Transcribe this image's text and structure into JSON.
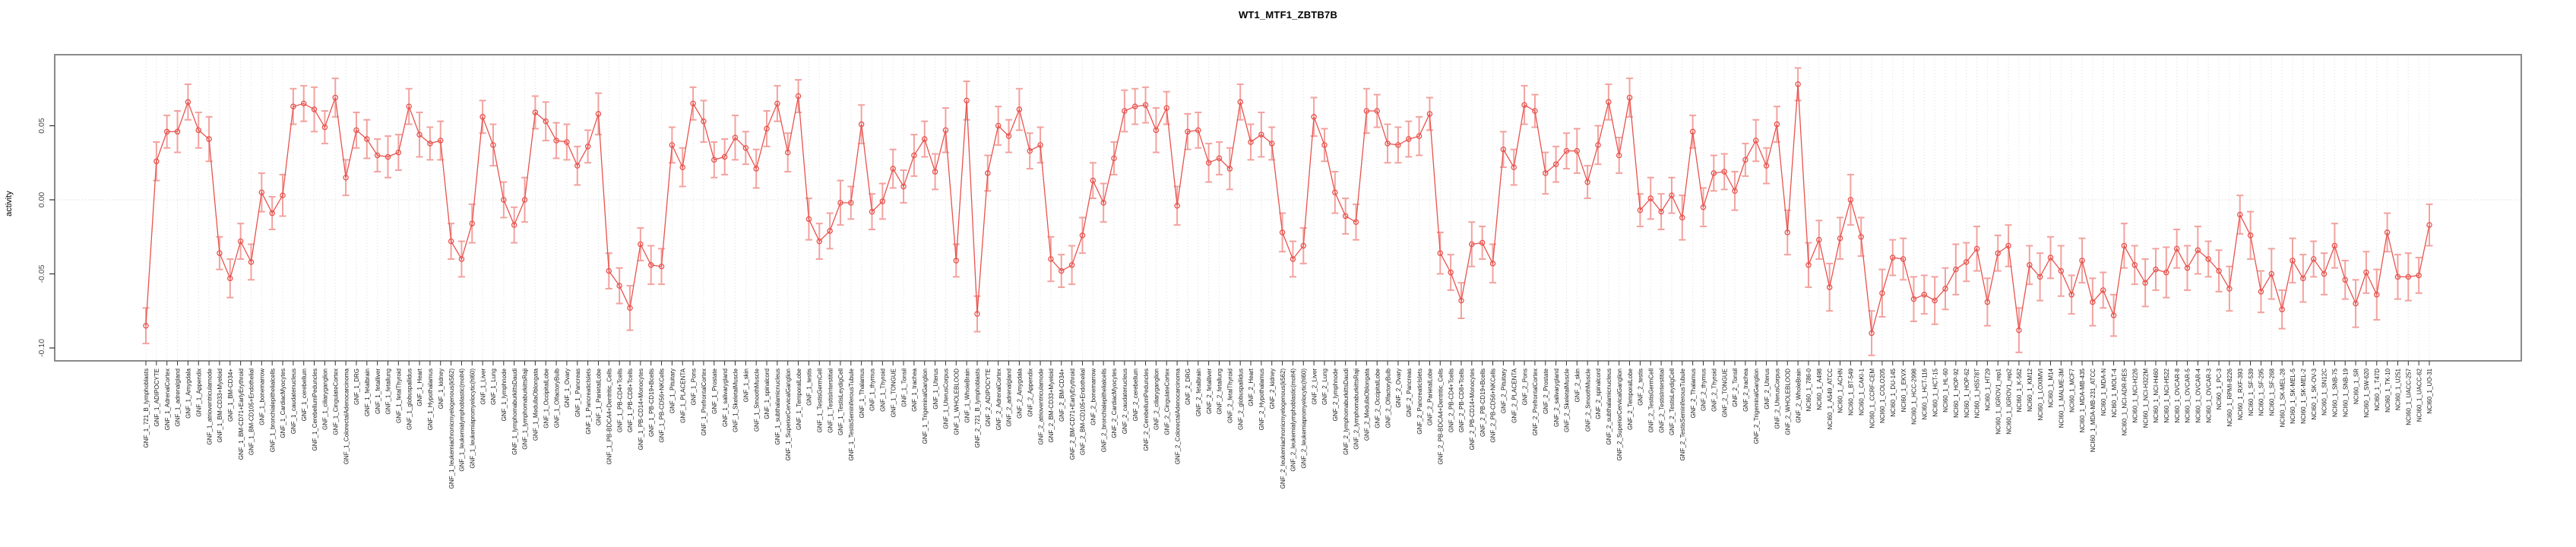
{
  "chart_data": {
    "type": "line",
    "title": "WT1_MTF1_ZBTB7B",
    "ylabel": "activity",
    "xlabel": "",
    "legend_position": "none",
    "grid": "dotted vertical line per category; dotted horizontal line at 0",
    "marker": "open-circle with error bars",
    "line_color": "#e8534e",
    "errorbar_color": "#f2a29e",
    "axis_text_color": "#4a4a4a",
    "panel_border_color": "#8a8a8a",
    "ylim": [
      -0.109,
      0.098
    ],
    "yticks": [
      0.05,
      0.0,
      -0.05,
      -0.1
    ],
    "ytick_labels": [
      "0.05",
      "0.00",
      "-0.05",
      "-0.10"
    ],
    "categories": [
      "GNF_1_721_B_lymphoblasts",
      "GNF_1_ADIPOCYTE",
      "GNF_1_AdrenalCortex",
      "GNF_1_adrenalgland",
      "GNF_1_Amygdala",
      "GNF_1_Appendix",
      "GNF_1_atrioventricularnode",
      "GNF_1_BM-CD33+Myeloid",
      "GNF_1_BM-CD34+",
      "GNF_1_BM-CD71+EarlyErythroid",
      "GNF_1_BM-CD105+Endothelial",
      "GNF_1_bonemarrow",
      "GNF_1_bronchialepithelialcells",
      "GNF_1_CardiacMyocytes",
      "GNF_1_caudatenucleus",
      "GNF_1_cerebellum",
      "GNF_1_CerebellumPeduncles",
      "GNF_1_ciliaryganglion",
      "GNF_1_CingulateCortex",
      "GNF_1_ColorectalAdenocarcinoma",
      "GNF_1_DRG",
      "GNF_1_fetalbrain",
      "GNF_1_fetalliver",
      "GNF_1_fetallung",
      "GNF_1_fetalThyroid",
      "GNF_1_globuspallidus",
      "GNF_1_Heart",
      "GNF_1_Hypothalamus",
      "GNF_1_kidney",
      "GNF_1_leukemiachronicmyelogenous(k562)",
      "GNF_1_leukemialymphoblastic(molt4)",
      "GNF_1_leukemiapromyelocytic(hl60)",
      "GNF_1_Liver",
      "GNF_1_Lung",
      "GNF_1_lymphnode",
      "GNF_1_lymphomaburkittsDaudi",
      "GNF_1_lymphomaburkittsRaji",
      "GNF_1_MedullaOblongata",
      "GNF_1_OccipitalLobe",
      "GNF_1_OlfactoryBulb",
      "GNF_1_Ovary",
      "GNF_1_Pancreas",
      "GNF_1_PancreaticIslets",
      "GNF_1_ParietalLobe",
      "GNF_1_PB-BDCA4+Dentritic_Cells",
      "GNF_1_PB-CD4+Tcells",
      "GNF_1_PB-CD8+Tcells",
      "GNF_1_PB-CD14+Monocytes",
      "GNF_1_PB-CD19+Bcells",
      "GNF_1_PB-CD56+NKCells",
      "GNF_1_Pituitary",
      "GNF_1_PLACENTA",
      "GNF_1_Pons",
      "GNF_1_PrefrontalCortex",
      "GNF_1_Prostate",
      "GNF_1_salivarygland",
      "GNF_1_SkeletalMuscle",
      "GNF_1_skin",
      "GNF_1_SmoothMuscle",
      "GNF_1_spinalcord",
      "GNF_1_subthalamicnucleus",
      "GNF_1_SuperiorCervicalGanglion",
      "GNF_1_TemporalLobe",
      "GNF_1_testis",
      "GNF_1_TestisGermCell",
      "GNF_1_TestisInterstitial",
      "GNF_1_TestisLeydigCell",
      "GNF_1_TestisSeminiferousTubule",
      "GNF_1_Thalamus",
      "GNF_1_thymus",
      "GNF_1_Thyroid",
      "GNF_1_TONGUE",
      "GNF_1_Tonsil",
      "GNF_1_trachea",
      "GNF_1_TrigeminalGanglion",
      "GNF_1_Uterus",
      "GNF_1_UterusCorpus",
      "GNF_1_WHOLEBLOOD",
      "GNF_1_WholeBrain",
      "GNF_2_721_B_lymphoblasts",
      "GNF_2_ADIPOCYTE",
      "GNF_2_AdrenalCortex",
      "GNF_2_adrenalgland",
      "GNF_2_Amygdala",
      "GNF_2_Appendix",
      "GNF_2_atrioventricularnode",
      "GNF_2_BM-CD33+Myeloid",
      "GNF_2_BM-CD34+",
      "GNF_2_BM-CD71+EarlyErythroid",
      "GNF_2_BM-CD105+Endothelial",
      "GNF_2_bonemarrow",
      "GNF_2_bronchialepithelialcells",
      "GNF_2_CardiacMyocytes",
      "GNF_2_caudatenucleus",
      "GNF_2_cerebellum",
      "GNF_2_CerebellumPeduncles",
      "GNF_2_ciliaryganglion",
      "GNF_2_CingulateCortex",
      "GNF_2_ColorectalAdenocarcinoma",
      "GNF_2_DRG",
      "GNF_2_fetalbrain",
      "GNF_2_fetalliver",
      "GNF_2_fetallung",
      "GNF_2_fetalThyroid",
      "GNF_2_globuspallidus",
      "GNF_2_Heart",
      "GNF_2_Hypothalamus",
      "GNF_2_kidney",
      "GNF_2_leukemiachronicmyelogenous(k562)",
      "GNF_2_leukemialymphoblastic(molt4)",
      "GNF_2_leukemiapromyelocytic(hl60)",
      "GNF_2_Liver",
      "GNF_2_Lung",
      "GNF_2_lymphnode",
      "GNF_2_lymphomaburkittsDaudi",
      "GNF_2_lymphomaburkittsRaji",
      "GNF_2_MedullaOblongata",
      "GNF_2_OccipitalLobe",
      "GNF_2_OlfactoryBulb",
      "GNF_2_Ovary",
      "GNF_2_Pancreas",
      "GNF_2_PancreaticIslets",
      "GNF_2_ParietalLobe",
      "GNF_2_PB-BDCA4+Dentritic_Cells",
      "GNF_2_PB-CD4+Tcells",
      "GNF_2_PB-CD8+Tcells",
      "GNF_2_PB-CD14+Monocytes",
      "GNF_2_PB-CD19+Bcells",
      "GNF_2_PB-CD56+NKCells",
      "GNF_2_Pituitary",
      "GNF_2_PLACENTA",
      "GNF_2_Pons",
      "GNF_2_PrefrontalCortex",
      "GNF_2_Prostate",
      "GNF_2_salivarygland",
      "GNF_2_SkeletalMuscle",
      "GNF_2_skin",
      "GNF_2_SmoothMuscle",
      "GNF_2_spinalcord",
      "GNF_2_subthalamicnucleus",
      "GNF_2_SuperiorCervicalGanglion",
      "GNF_2_TemporalLobe",
      "GNF_2_testis",
      "GNF_2_TestisGermCell",
      "GNF_2_TestisInterstitial",
      "GNF_2_TestisLeydigCell",
      "GNF_2_TestisSeminiferousTubule",
      "GNF_2_Thalamus",
      "GNF_2_thymus",
      "GNF_2_Thyroid",
      "GNF_2_TONGUE",
      "GNF_2_Tonsil",
      "GNF_2_trachea",
      "GNF_2_TrigeminalGanglion",
      "GNF_2_Uterus",
      "GNF_2_UterusCorpus",
      "GNF_2_WHOLEBLOOD",
      "GNF_2_WholeBrain",
      "NCI60_1_786-0",
      "NCI60_1_A498",
      "NCI60_1_A549_ATCC",
      "NCI60_1_ACHN",
      "NCI60_1_BT-549",
      "NCI60_1_CAKI-1",
      "NCI60_1_CCRF-CEM",
      "NCI60_1_COLO205",
      "NCI60_1_DU-145",
      "NCI60_1_EKVX",
      "NCI60_1_HCC-2998",
      "NCI60_1_HCT-116",
      "NCI60_1_HCT-15",
      "NCI60_1_HL-60",
      "NCI60_1_HOP-92",
      "NCI60_1_HOP-62",
      "NCI60_1_HS578T",
      "NCI60_1_HT29",
      "NCI60_1_IGROV1_rep1",
      "NCI60_1_IGROV1_rep2",
      "NCI60_1_K-562",
      "NCI60_1_KM12",
      "NCI60_1_LOXIMVI",
      "NCI60_1_M14",
      "NCI60_1_MALME-3M",
      "NCI60_1_MCF7",
      "NCI60_1_MDA-MB-435",
      "NCI60_1_MDA-MB-231_ATCC",
      "NCI60_1_MDA-N",
      "NCI60_1_MOLT-4",
      "NCI60_1_NCI-ADR-RES",
      "NCI60_1_NCI-H226",
      "NCI60_1_NCI-H322M",
      "NCI60_1_NCI-H460",
      "NCI60_1_NCI-H522",
      "NCI60_1_OVCAR-8",
      "NCI60_1_OVCAR-5",
      "NCI60_1_OVCAR-4",
      "NCI60_1_OVCAR-3",
      "NCI60_1_PC-3",
      "NCI60_1_RPMI-8226",
      "NCI60_1_RXF-393",
      "NCI60_1_SF-539",
      "NCI60_1_SF-295",
      "NCI60_1_SF-268",
      "NCI60_1_SK-MEL-28",
      "NCI60_1_SK-MEL-5",
      "NCI60_1_SK-MEL-2",
      "NCI60_1_SK-OV-3",
      "NCI60_1_SN12C",
      "NCI60_1_SNB-75",
      "NCI60_1_SNB-19",
      "NCI60_1_SR",
      "NCI60_1_SW-620",
      "NCI60_1_T47D",
      "NCI60_1_TK-10",
      "NCI60_1_U251",
      "NCI60_1_UACC-257",
      "NCI60_1_UACC-62",
      "NCI60_1_UO-31"
    ],
    "series": [
      {
        "name": "activity",
        "values": [
          -0.085,
          0.026,
          0.046,
          0.046,
          0.066,
          0.047,
          0.041,
          -0.036,
          -0.053,
          -0.028,
          -0.042,
          0.005,
          -0.009,
          0.003,
          0.063,
          0.065,
          0.061,
          0.049,
          0.069,
          0.015,
          0.047,
          0.041,
          0.03,
          0.029,
          0.032,
          0.063,
          0.044,
          0.038,
          0.04,
          -0.028,
          -0.04,
          -0.016,
          0.056,
          0.037,
          0.0,
          -0.017,
          0.0,
          0.059,
          0.053,
          0.04,
          0.039,
          0.023,
          0.036,
          0.058,
          -0.048,
          -0.058,
          -0.073,
          -0.03,
          -0.044,
          -0.045,
          0.037,
          0.022,
          0.065,
          0.053,
          0.027,
          0.029,
          0.042,
          0.035,
          0.021,
          0.048,
          0.065,
          0.032,
          0.07,
          -0.013,
          -0.028,
          -0.021,
          -0.002,
          -0.002,
          0.051,
          -0.008,
          -0.001,
          0.021,
          0.009,
          0.03,
          0.041,
          0.019,
          0.047,
          -0.041,
          0.067,
          -0.077,
          0.018,
          0.05,
          0.043,
          0.061,
          0.033,
          0.037,
          -0.04,
          -0.048,
          -0.044,
          -0.024,
          0.013,
          -0.002,
          0.028,
          0.06,
          0.063,
          0.064,
          0.047,
          0.062,
          -0.004,
          0.046,
          0.047,
          0.025,
          0.028,
          0.021,
          0.066,
          0.039,
          0.044,
          0.038,
          -0.022,
          -0.04,
          -0.031,
          0.056,
          0.037,
          0.005,
          -0.011,
          -0.015,
          0.06,
          0.06,
          0.038,
          0.037,
          0.041,
          0.043,
          0.058,
          -0.036,
          -0.049,
          -0.068,
          -0.03,
          -0.029,
          -0.043,
          0.034,
          0.022,
          0.064,
          0.06,
          0.018,
          0.024,
          0.033,
          0.033,
          0.012,
          0.037,
          0.066,
          0.03,
          0.069,
          -0.007,
          0.001,
          -0.008,
          0.003,
          -0.012,
          0.046,
          -0.005,
          0.018,
          0.019,
          0.006,
          0.027,
          0.04,
          0.023,
          0.051,
          -0.022,
          0.078,
          -0.044,
          -0.027,
          -0.059,
          -0.026,
          0.0,
          -0.025,
          -0.09,
          -0.063,
          -0.039,
          -0.04,
          -0.067,
          -0.064,
          -0.068,
          -0.06,
          -0.047,
          -0.042,
          -0.033,
          -0.069,
          -0.036,
          -0.031,
          -0.088,
          -0.044,
          -0.052,
          -0.039,
          -0.048,
          -0.064,
          -0.041,
          -0.069,
          -0.061,
          -0.078,
          -0.031,
          -0.044,
          -0.056,
          -0.047,
          -0.049,
          -0.033,
          -0.046,
          -0.034,
          -0.04,
          -0.048,
          -0.06,
          -0.01,
          -0.024,
          -0.062,
          -0.05,
          -0.074,
          -0.041,
          -0.053,
          -0.04,
          -0.05,
          -0.031,
          -0.054,
          -0.07,
          -0.049,
          -0.064,
          -0.022,
          -0.052,
          -0.052,
          -0.051,
          -0.017
        ],
        "errors": [
          0.012,
          0.013,
          0.011,
          0.014,
          0.012,
          0.012,
          0.015,
          0.011,
          0.013,
          0.012,
          0.012,
          0.013,
          0.011,
          0.014,
          0.012,
          0.012,
          0.015,
          0.011,
          0.013,
          0.012,
          0.012,
          0.013,
          0.011,
          0.014,
          0.012,
          0.012,
          0.015,
          0.011,
          0.013,
          0.012,
          0.012,
          0.013,
          0.011,
          0.014,
          0.012,
          0.012,
          0.015,
          0.011,
          0.013,
          0.012,
          0.012,
          0.013,
          0.011,
          0.014,
          0.012,
          0.012,
          0.015,
          0.011,
          0.013,
          0.012,
          0.012,
          0.013,
          0.011,
          0.014,
          0.012,
          0.012,
          0.015,
          0.011,
          0.013,
          0.012,
          0.012,
          0.013,
          0.011,
          0.014,
          0.012,
          0.012,
          0.015,
          0.011,
          0.013,
          0.012,
          0.012,
          0.013,
          0.011,
          0.014,
          0.012,
          0.012,
          0.015,
          0.011,
          0.013,
          0.012,
          0.012,
          0.013,
          0.011,
          0.014,
          0.012,
          0.012,
          0.015,
          0.011,
          0.013,
          0.012,
          0.012,
          0.013,
          0.011,
          0.014,
          0.012,
          0.012,
          0.015,
          0.011,
          0.013,
          0.012,
          0.012,
          0.013,
          0.011,
          0.014,
          0.012,
          0.012,
          0.015,
          0.011,
          0.013,
          0.012,
          0.012,
          0.013,
          0.011,
          0.014,
          0.012,
          0.012,
          0.015,
          0.011,
          0.013,
          0.012,
          0.012,
          0.013,
          0.011,
          0.014,
          0.012,
          0.012,
          0.015,
          0.011,
          0.013,
          0.012,
          0.012,
          0.013,
          0.011,
          0.014,
          0.012,
          0.012,
          0.015,
          0.011,
          0.013,
          0.012,
          0.012,
          0.013,
          0.011,
          0.014,
          0.012,
          0.012,
          0.015,
          0.011,
          0.013,
          0.012,
          0.012,
          0.013,
          0.011,
          0.014,
          0.012,
          0.012,
          0.015,
          0.011,
          0.015,
          0.013,
          0.016,
          0.014,
          0.017,
          0.013,
          0.015,
          0.016,
          0.012,
          0.014,
          0.015,
          0.013,
          0.016,
          0.014,
          0.017,
          0.013,
          0.015,
          0.016,
          0.012,
          0.014,
          0.015,
          0.013,
          0.016,
          0.014,
          0.017,
          0.013,
          0.015,
          0.016,
          0.012,
          0.014,
          0.015,
          0.013,
          0.016,
          0.014,
          0.017,
          0.013,
          0.015,
          0.016,
          0.012,
          0.014,
          0.015,
          0.013,
          0.016,
          0.014,
          0.017,
          0.013,
          0.015,
          0.016,
          0.012,
          0.014,
          0.015,
          0.013,
          0.016,
          0.014,
          0.017,
          0.013,
          0.015,
          0.016,
          0.012,
          0.014
        ]
      }
    ]
  }
}
